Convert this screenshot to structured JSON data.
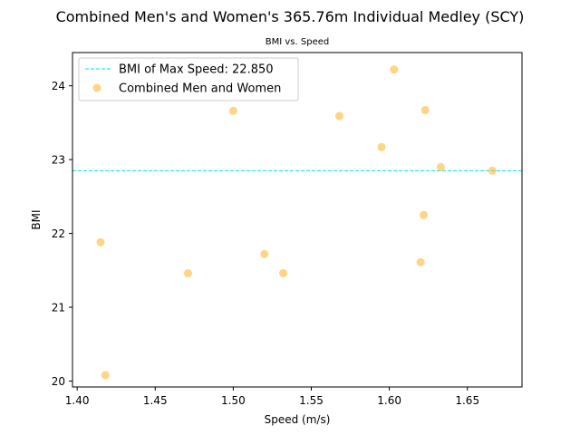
{
  "chart_data": {
    "type": "scatter",
    "title": "Combined Men's and Women's 365.76m Individual Medley (SCY)",
    "subtitle": "BMI vs. Speed",
    "xlabel": "Speed (m/s)",
    "ylabel": "BMI",
    "xlim": [
      1.397,
      1.685
    ],
    "ylim": [
      19.92,
      24.45
    ],
    "xticks": [
      1.4,
      1.45,
      1.5,
      1.55,
      1.6,
      1.65
    ],
    "xtick_labels": [
      "1.40",
      "1.45",
      "1.50",
      "1.55",
      "1.60",
      "1.65"
    ],
    "yticks": [
      20,
      21,
      22,
      23,
      24
    ],
    "ytick_labels": [
      "20",
      "21",
      "22",
      "23",
      "24"
    ],
    "grid": false,
    "legend_position": "upper-left",
    "series": [
      {
        "name": "Combined Men and Women",
        "kind": "scatter",
        "color": "#FFB732",
        "x": [
          1.415,
          1.418,
          1.471,
          1.5,
          1.52,
          1.532,
          1.568,
          1.595,
          1.603,
          1.62,
          1.622,
          1.623,
          1.633,
          1.666
        ],
        "y": [
          21.88,
          20.08,
          21.46,
          23.66,
          21.72,
          21.46,
          23.59,
          23.17,
          24.22,
          21.61,
          22.25,
          23.67,
          22.9,
          22.85
        ]
      }
    ],
    "reference_lines": [
      {
        "name": "BMI of Max Speed: 22.850",
        "orientation": "horizontal",
        "value": 22.85,
        "color": "#00E5E5",
        "style": "dashed"
      }
    ]
  }
}
